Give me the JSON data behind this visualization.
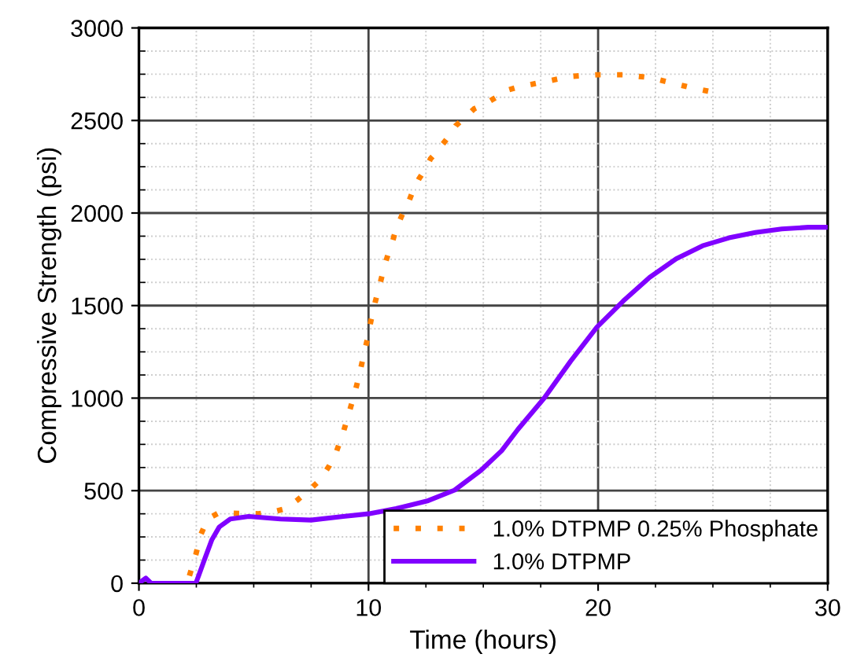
{
  "chart_data": {
    "type": "line",
    "xlabel": "Time (hours)",
    "ylabel": "Compressive Strength (psi)",
    "xlim": [
      0,
      30
    ],
    "ylim": [
      0,
      3000
    ],
    "xticks": [
      0,
      10,
      20,
      30
    ],
    "yticks": [
      0,
      500,
      1000,
      1500,
      2000,
      2500,
      3000
    ],
    "grid": true,
    "legend": "bottom right",
    "series": [
      {
        "name": "1.0% DTPMP 0.25% Phosphate",
        "color": "#ff8000",
        "line_style": "dotted",
        "x": [
          2.2,
          2.48,
          2.71,
          2.99,
          3.45,
          4.1,
          5.2,
          5.8,
          6.4,
          6.9,
          7.4,
          7.9,
          8.3,
          8.6,
          8.9,
          9.15,
          9.4,
          9.6,
          9.8,
          9.95,
          10.1,
          10.3,
          10.5,
          10.7,
          10.9,
          11.06,
          11.2,
          11.5,
          11.7,
          11.95,
          12.2,
          12.5,
          12.7,
          13.0,
          13.5,
          13.8,
          14.25,
          14.6,
          15.1,
          15.6,
          16.0,
          16.5,
          17.65,
          18.8,
          19.95,
          21.1,
          22.25,
          23.17,
          24.1,
          25.0
        ],
        "values": [
          40,
          156,
          267,
          347,
          378,
          378,
          375,
          384,
          403,
          449,
          500,
          560,
          636,
          710,
          815,
          920,
          1028,
          1125,
          1239,
          1318,
          1415,
          1523,
          1617,
          1716,
          1796,
          1852,
          1915,
          2000,
          2045,
          2125,
          2185,
          2242,
          2293,
          2335,
          2415,
          2472,
          2520,
          2563,
          2591,
          2628,
          2662,
          2680,
          2709,
          2738,
          2747,
          2747,
          2732,
          2704,
          2676,
          2653
        ]
      },
      {
        "name": "1.0% DTPMP",
        "color": "#8000ff",
        "line_style": "solid",
        "x": [
          0.0,
          0.3,
          0.53,
          2.48,
          2.83,
          3.17,
          3.5,
          3.98,
          4.78,
          6.16,
          7.5,
          8.9,
          10.0,
          11.2,
          12.6,
          13.75,
          14.9,
          15.8,
          16.5,
          17.65,
          18.8,
          19.95,
          21.1,
          22.25,
          23.4,
          24.55,
          25.7,
          26.85,
          28.0,
          29.15,
          30.0
        ],
        "values": [
          0,
          28,
          0,
          0,
          119,
          233,
          304,
          347,
          361,
          347,
          341,
          361,
          375,
          403,
          446,
          503,
          610,
          716,
          830,
          1000,
          1199,
          1384,
          1525,
          1653,
          1753,
          1823,
          1866,
          1895,
          1914,
          1923,
          1923
        ]
      }
    ]
  }
}
